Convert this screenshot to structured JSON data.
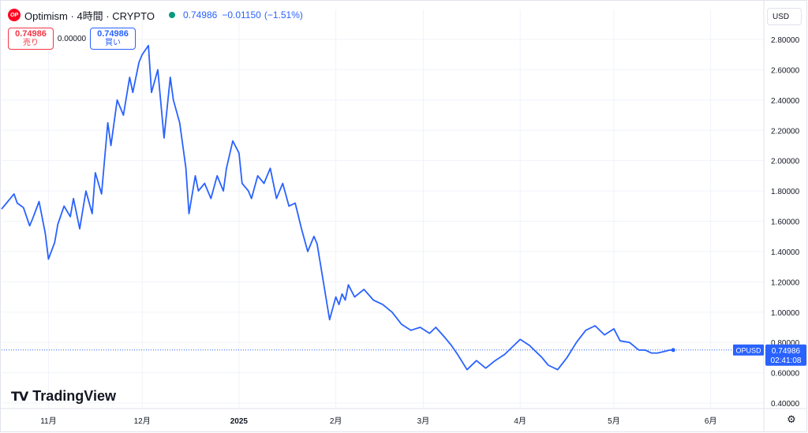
{
  "header": {
    "logo_text": "OP",
    "title": "Optimism · 4時間 · CRYPTO",
    "last": "0.74986",
    "change": "−0.01150",
    "change_pct": "(−1.51%)"
  },
  "trade": {
    "sell_price": "0.74986",
    "sell_label": "売り",
    "spread": "0.00000",
    "buy_price": "0.74986",
    "buy_label": "買い"
  },
  "currency": "USD",
  "branding": "TradingView",
  "colors": {
    "line": "#2962ff",
    "grid": "#f0f3fa",
    "sell": "#f23645",
    "buy": "#2962ff",
    "live_dot": "#089981"
  },
  "chart_data": {
    "type": "line",
    "symbol": "OPUSD",
    "price_label": "0.74986",
    "countdown": "02:41:08",
    "ylim": [
      0.4,
      2.8
    ],
    "y_ticks": [
      "0.40000",
      "0.60000",
      "0.80000",
      "1.00000",
      "1.20000",
      "1.40000",
      "1.60000",
      "1.80000",
      "2.00000",
      "2.20000",
      "2.40000",
      "2.60000",
      "2.80000"
    ],
    "x_ticks": [
      {
        "label": "11月",
        "date": "2024-11-01",
        "bold": false
      },
      {
        "label": "12月",
        "date": "2024-12-01",
        "bold": false
      },
      {
        "label": "2025",
        "date": "2025-01-01",
        "bold": true
      },
      {
        "label": "2月",
        "date": "2025-02-01",
        "bold": false
      },
      {
        "label": "3月",
        "date": "2025-03-01",
        "bold": false
      },
      {
        "label": "4月",
        "date": "2025-04-01",
        "bold": false
      },
      {
        "label": "5月",
        "date": "2025-05-01",
        "bold": false
      },
      {
        "label": "6月",
        "date": "2025-06-01",
        "bold": false
      }
    ],
    "x_range": [
      "2024-10-17",
      "2025-06-18"
    ],
    "series": [
      {
        "x": [
          "2024-10-17",
          "2024-10-19",
          "2024-10-21",
          "2024-10-22",
          "2024-10-24",
          "2024-10-26",
          "2024-10-27",
          "2024-10-29",
          "2024-10-31",
          "2024-11-01",
          "2024-11-03",
          "2024-11-04",
          "2024-11-06",
          "2024-11-08",
          "2024-11-09",
          "2024-11-11",
          "2024-11-13",
          "2024-11-15",
          "2024-11-16",
          "2024-11-18",
          "2024-11-20",
          "2024-11-21",
          "2024-11-23",
          "2024-11-25",
          "2024-11-27",
          "2024-11-28",
          "2024-11-30",
          "2024-12-01",
          "2024-12-03",
          "2024-12-04",
          "2024-12-06",
          "2024-12-08",
          "2024-12-10",
          "2024-12-11",
          "2024-12-13",
          "2024-12-15",
          "2024-12-16",
          "2024-12-18",
          "2024-12-19",
          "2024-12-21",
          "2024-12-23",
          "2024-12-25",
          "2024-12-27",
          "2024-12-28",
          "2024-12-30",
          "2025-01-01",
          "2025-01-02",
          "2025-01-04",
          "2025-01-05",
          "2025-01-07",
          "2025-01-09",
          "2025-01-11",
          "2025-01-13",
          "2025-01-15",
          "2025-01-17",
          "2025-01-19",
          "2025-01-21",
          "2025-01-23",
          "2025-01-25",
          "2025-01-26",
          "2025-01-28",
          "2025-01-30",
          "2025-02-01",
          "2025-02-02",
          "2025-02-03",
          "2025-02-04",
          "2025-02-05",
          "2025-02-07",
          "2025-02-10",
          "2025-02-13",
          "2025-02-16",
          "2025-02-19",
          "2025-02-22",
          "2025-02-25",
          "2025-02-28",
          "2025-03-03",
          "2025-03-05",
          "2025-03-08",
          "2025-03-10",
          "2025-03-12",
          "2025-03-15",
          "2025-03-18",
          "2025-03-21",
          "2025-03-24",
          "2025-03-27",
          "2025-03-30",
          "2025-04-01",
          "2025-04-04",
          "2025-04-06",
          "2025-04-08",
          "2025-04-10",
          "2025-04-13",
          "2025-04-16",
          "2025-04-19",
          "2025-04-22",
          "2025-04-25",
          "2025-04-28",
          "2025-05-01",
          "2025-05-03",
          "2025-05-06",
          "2025-05-09",
          "2025-05-11",
          "2025-05-13",
          "2025-05-15",
          "2025-05-17",
          "2025-05-19",
          "2025-05-20"
        ],
        "values": [
          1.68,
          1.73,
          1.78,
          1.72,
          1.69,
          1.57,
          1.62,
          1.73,
          1.52,
          1.35,
          1.46,
          1.58,
          1.7,
          1.63,
          1.75,
          1.55,
          1.8,
          1.65,
          1.92,
          1.78,
          2.25,
          2.1,
          2.4,
          2.3,
          2.55,
          2.45,
          2.65,
          2.7,
          2.76,
          2.45,
          2.6,
          2.15,
          2.55,
          2.4,
          2.25,
          1.95,
          1.65,
          1.9,
          1.8,
          1.85,
          1.75,
          1.9,
          1.8,
          1.95,
          2.13,
          2.05,
          1.85,
          1.8,
          1.75,
          1.9,
          1.85,
          1.95,
          1.75,
          1.85,
          1.7,
          1.72,
          1.55,
          1.4,
          1.5,
          1.45,
          1.2,
          0.95,
          1.1,
          1.05,
          1.12,
          1.08,
          1.18,
          1.1,
          1.15,
          1.08,
          1.05,
          1.0,
          0.92,
          0.88,
          0.9,
          0.86,
          0.9,
          0.83,
          0.78,
          0.72,
          0.62,
          0.68,
          0.63,
          0.68,
          0.72,
          0.78,
          0.82,
          0.78,
          0.74,
          0.7,
          0.65,
          0.62,
          0.7,
          0.8,
          0.88,
          0.91,
          0.85,
          0.89,
          0.81,
          0.8,
          0.75,
          0.75,
          0.73,
          0.73,
          0.74,
          0.75,
          0.75
        ]
      }
    ]
  }
}
